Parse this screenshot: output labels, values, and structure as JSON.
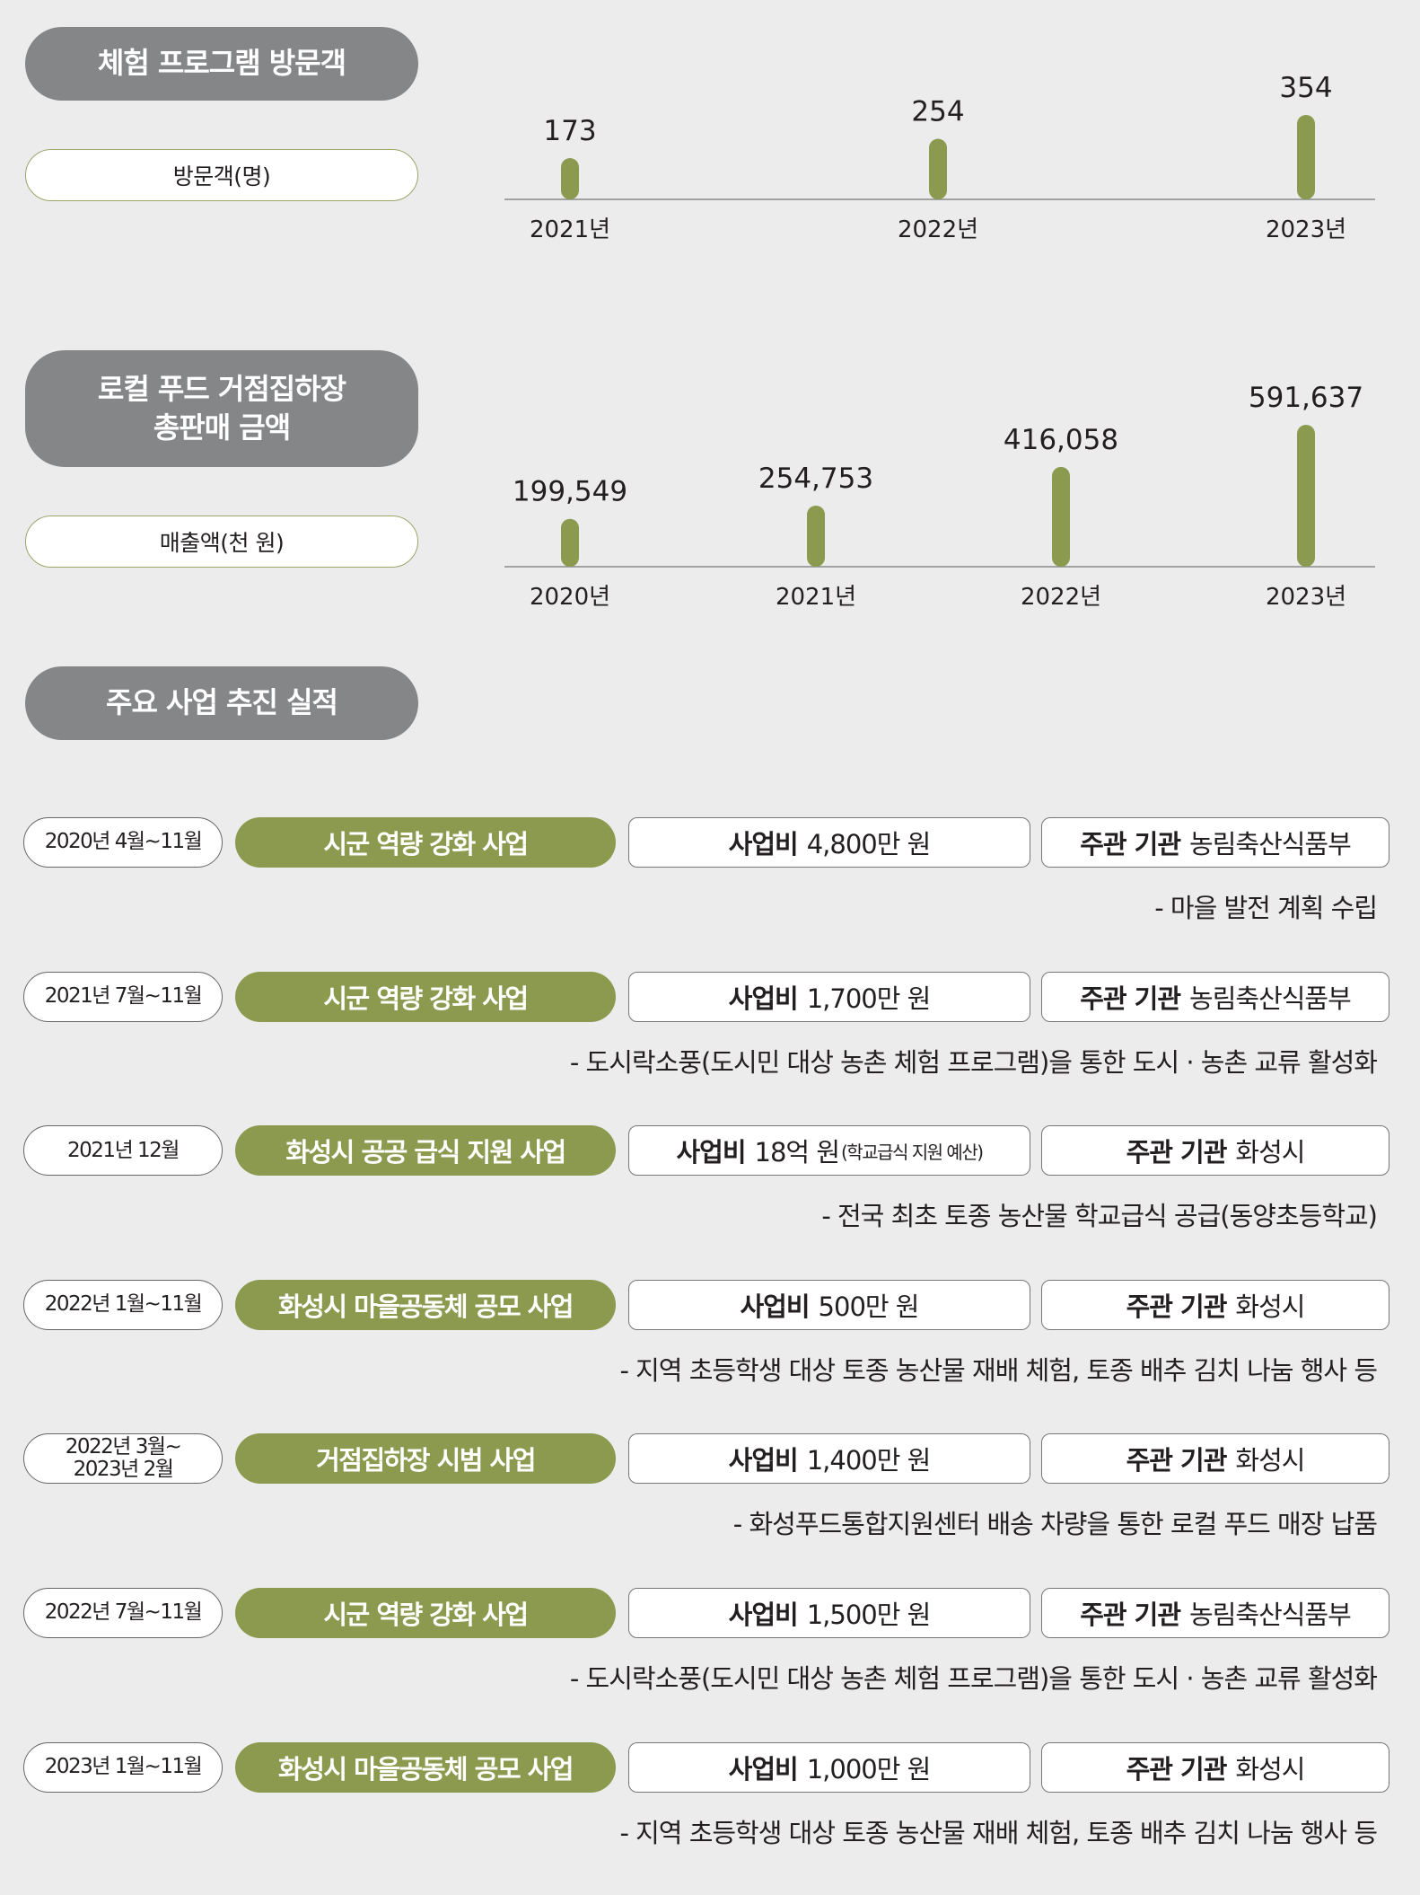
{
  "visitors": {
    "title": "체험 프로그램 방문객",
    "unit": "방문객(명)"
  },
  "sales": {
    "title_line1": "로컬 푸드 거점집하장",
    "title_line2": "총판매 금액",
    "unit": "매출액(천 원)"
  },
  "chart_data": [
    {
      "type": "bar",
      "categories": [
        "2021년",
        "2022년",
        "2023년"
      ],
      "values": [
        173,
        254,
        354
      ],
      "value_labels": [
        "173",
        "254",
        "354"
      ],
      "title": "체험 프로그램 방문객",
      "ylabel": "방문객(명)"
    },
    {
      "type": "bar",
      "categories": [
        "2020년",
        "2021년",
        "2022년",
        "2023년"
      ],
      "values": [
        199549,
        254753,
        416058,
        591637
      ],
      "value_labels": [
        "199,549",
        "254,753",
        "416,058",
        "591,637"
      ],
      "title": "로컬 푸드 거점집하장 총판매 금액",
      "ylabel": "매출액(천 원)"
    }
  ],
  "colors": {
    "bar": "#8c9a4f",
    "pill": "#858688",
    "accent": "#8c9a4f"
  },
  "projects_title": "주요 사업 추진 실적",
  "projects": [
    {
      "date": "2020년 4월~11월",
      "name": "시군 역량 강화 사업",
      "budget_label": "사업비",
      "budget": "4,800만 원",
      "budget_note": "",
      "org_label": "주관 기관",
      "org": "농림축산식품부",
      "desc": "- 마을 발전 계획 수립"
    },
    {
      "date": "2021년 7월~11월",
      "name": "시군 역량 강화 사업",
      "budget_label": "사업비",
      "budget": "1,700만 원",
      "budget_note": "",
      "org_label": "주관 기관",
      "org": "농림축산식품부",
      "desc": "- 도시락소풍(도시민 대상 농촌 체험 프로그램)을 통한 도시 · 농촌 교류 활성화"
    },
    {
      "date": "2021년 12월",
      "name": "화성시 공공 급식 지원 사업",
      "budget_label": "사업비",
      "budget": "18억 원",
      "budget_note": "(학교급식 지원 예산)",
      "org_label": "주관 기관",
      "org": "화성시",
      "desc": "- 전국 최초 토종 농산물 학교급식 공급(동양초등학교)"
    },
    {
      "date": "2022년 1월~11월",
      "name": "화성시 마을공동체 공모 사업",
      "budget_label": "사업비",
      "budget": "500만 원",
      "budget_note": "",
      "org_label": "주관 기관",
      "org": "화성시",
      "desc": "- 지역 초등학생 대상 토종 농산물 재배 체험, 토종 배추 김치 나눔 행사 등"
    },
    {
      "date": "2022년 3월~\n2023년 2월",
      "name": "거점집하장 시범 사업",
      "budget_label": "사업비",
      "budget": "1,400만 원",
      "budget_note": "",
      "org_label": "주관 기관",
      "org": "화성시",
      "desc": "- 화성푸드통합지원센터 배송 차량을 통한 로컬 푸드 매장 납품"
    },
    {
      "date": "2022년 7월~11월",
      "name": "시군 역량 강화 사업",
      "budget_label": "사업비",
      "budget": "1,500만 원",
      "budget_note": "",
      "org_label": "주관 기관",
      "org": "농림축산식품부",
      "desc": "- 도시락소풍(도시민 대상 농촌 체험 프로그램)을 통한 도시 · 농촌 교류 활성화"
    },
    {
      "date": "2023년 1월~11월",
      "name": "화성시 마을공동체 공모 사업",
      "budget_label": "사업비",
      "budget": "1,000만 원",
      "budget_note": "",
      "org_label": "주관 기관",
      "org": "화성시",
      "desc": "- 지역 초등학생 대상 토종 농산물 재배 체험, 토종 배추 김치 나눔 행사 등"
    }
  ]
}
